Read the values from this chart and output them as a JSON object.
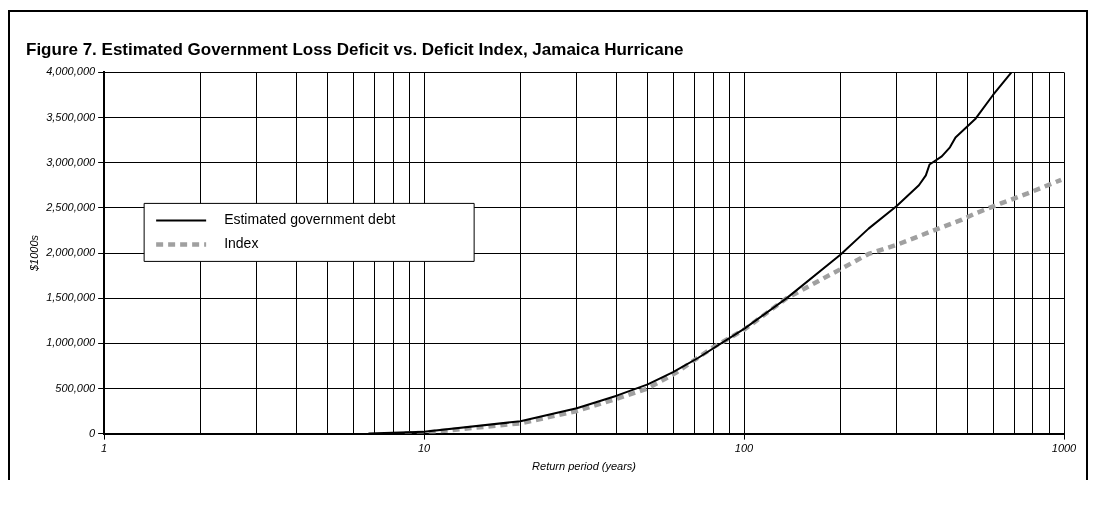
{
  "chart_data": {
    "type": "line",
    "title": "Figure 7. Estimated Government Loss Deficit vs. Deficit Index, Jamaica Hurricane",
    "xlabel": "Return period (years)",
    "ylabel": "$1000s",
    "log": "x",
    "grid": true,
    "legend": "left",
    "marker": "none",
    "xlim": [
      1,
      1000
    ],
    "ylim": [
      0,
      4000000
    ],
    "xticks": [
      1,
      {
        "value": 2,
        "label": null
      },
      {
        "value": 3,
        "label": null
      },
      {
        "value": 4,
        "label": null
      },
      {
        "value": 5,
        "label": null
      },
      {
        "value": 6,
        "label": null
      },
      {
        "value": 7,
        "label": null
      },
      {
        "value": 8,
        "label": null
      },
      {
        "value": 9,
        "label": null
      },
      10,
      {
        "value": 20,
        "label": null
      },
      {
        "value": 30,
        "label": null
      },
      {
        "value": 40,
        "label": null
      },
      {
        "value": 50,
        "label": null
      },
      {
        "value": 60,
        "label": null
      },
      {
        "value": 70,
        "label": null
      },
      {
        "value": 80,
        "label": null
      },
      {
        "value": 90,
        "label": null
      },
      100,
      {
        "value": 200,
        "label": null
      },
      {
        "value": 300,
        "label": null
      },
      {
        "value": 400,
        "label": null
      },
      {
        "value": 500,
        "label": null
      },
      {
        "value": 600,
        "label": null
      },
      {
        "value": 700,
        "label": null
      },
      {
        "value": 800,
        "label": null
      },
      {
        "value": 900,
        "label": null
      },
      1000
    ],
    "yticks": [
      {
        "value": 0,
        "label": "0"
      },
      {
        "value": 500000,
        "label": "500,000"
      },
      {
        "value": 1000000,
        "label": "1,000,000"
      },
      {
        "value": 1500000,
        "label": "1,500,000"
      },
      {
        "value": 2000000,
        "label": "2,000,000"
      },
      {
        "value": 2500000,
        "label": "2,500,000"
      },
      {
        "value": 3000000,
        "label": "3,000,000"
      },
      {
        "value": 3500000,
        "label": "3,500,000"
      },
      {
        "value": 4000000,
        "label": "4,000,000"
      }
    ],
    "series": [
      {
        "name": "Estimated government debt",
        "color": "#000000",
        "line_style": "solid",
        "x": [
          6.7,
          10,
          20,
          30,
          40,
          50,
          60,
          72,
          100,
          136,
          200,
          245,
          300,
          352,
          370,
          380,
          415,
          440,
          458,
          530,
          600,
          685
        ],
        "values": [
          0,
          20000,
          137000,
          280000,
          420000,
          545000,
          680000,
          840000,
          1160000,
          1500000,
          1980000,
          2270000,
          2520000,
          2750000,
          2860000,
          2980000,
          3070000,
          3170000,
          3280000,
          3490000,
          3750000,
          4000000
        ]
      },
      {
        "name": "Index",
        "color": "#a0a0a0",
        "line_style": "dashed",
        "x": [
          8.7,
          10,
          20,
          30,
          40,
          50,
          61,
          80,
          100,
          136,
          167,
          200,
          245,
          300,
          385,
          480,
          530,
          635,
          770,
          980
        ],
        "values": [
          0,
          10000,
          114000,
          250000,
          386000,
          500000,
          670000,
          955000,
          1150000,
          1500000,
          1670000,
          1820000,
          1990000,
          2090000,
          2240000,
          2370000,
          2440000,
          2550000,
          2660000,
          2810000
        ]
      }
    ]
  }
}
